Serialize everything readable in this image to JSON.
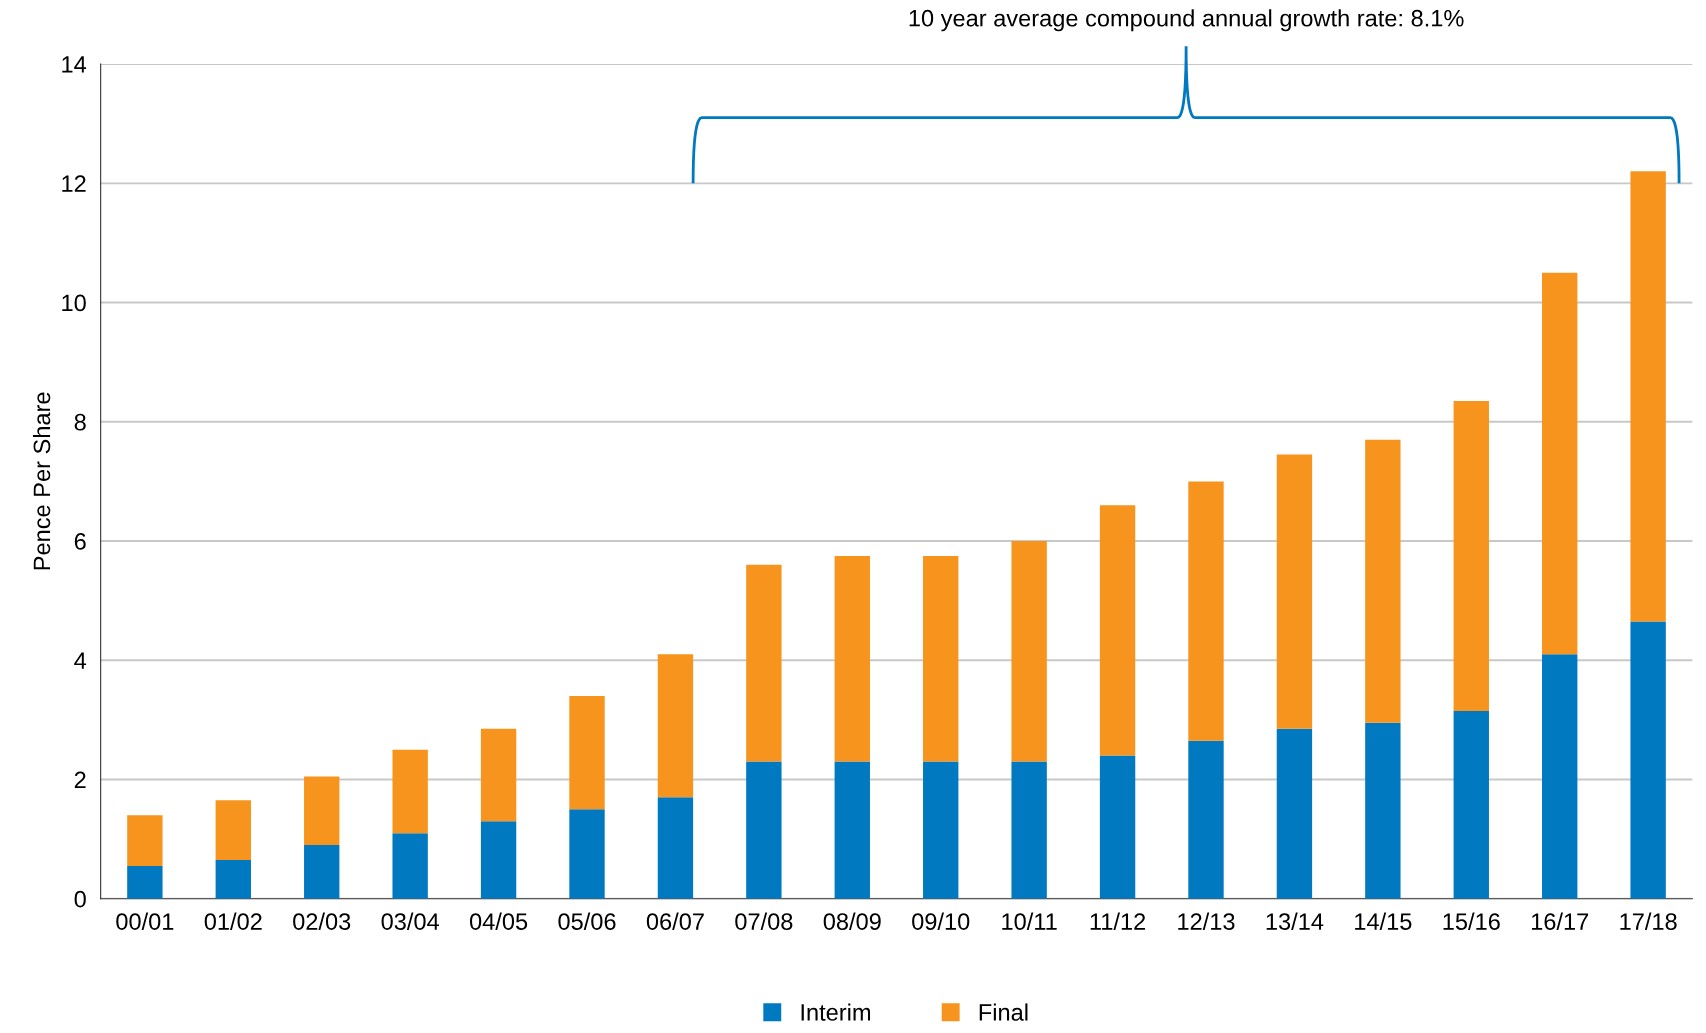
{
  "chart_data": {
    "type": "bar",
    "stacked": true,
    "ylabel": "Pence Per Share",
    "categories": [
      "00/01",
      "01/02",
      "02/03",
      "03/04",
      "04/05",
      "05/06",
      "06/07",
      "07/08",
      "08/09",
      "09/10",
      "10/11",
      "11/12",
      "12/13",
      "13/14",
      "14/15",
      "15/16",
      "16/17",
      "17/18"
    ],
    "series": [
      {
        "name": "Interim",
        "color": "#0079c1",
        "values": [
          0.55,
          0.65,
          0.9,
          1.1,
          1.3,
          1.5,
          1.7,
          2.3,
          2.3,
          2.3,
          2.3,
          2.4,
          2.65,
          2.85,
          2.95,
          3.15,
          4.1,
          4.65
        ]
      },
      {
        "name": "Final",
        "color": "#f7941d",
        "values": [
          0.85,
          1.0,
          1.15,
          1.4,
          1.55,
          1.9,
          2.4,
          3.3,
          3.45,
          3.45,
          3.7,
          4.2,
          4.35,
          4.6,
          4.75,
          5.2,
          6.4,
          7.55
        ]
      }
    ],
    "ylim": [
      0,
      14
    ],
    "yticks": [
      0,
      2,
      4,
      6,
      8,
      10,
      12,
      14
    ],
    "grid": "y",
    "legend": "bottom",
    "annotations": [
      "10 year average compound annual growth rate: 8.1%"
    ]
  }
}
